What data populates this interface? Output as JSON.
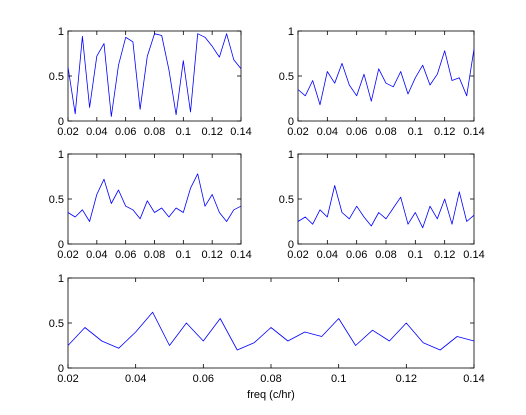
{
  "chart_data": [
    {
      "type": "line",
      "panel": "top-left",
      "xlim": [
        0.02,
        0.14
      ],
      "ylim": [
        0,
        1
      ],
      "xticks": [
        "0.02",
        "0.04",
        "0.06",
        "0.08",
        "0.1",
        "0.12",
        "0.14"
      ],
      "yticks": [
        "0",
        "0.5",
        "1"
      ],
      "xlabel": "",
      "x": [
        0.02,
        0.025,
        0.03,
        0.035,
        0.04,
        0.045,
        0.05,
        0.055,
        0.06,
        0.065,
        0.07,
        0.075,
        0.08,
        0.085,
        0.09,
        0.095,
        0.1,
        0.105,
        0.11,
        0.115,
        0.12,
        0.125,
        0.13,
        0.135,
        0.14
      ],
      "series": [
        {
          "values": [
            0.6,
            0.08,
            0.94,
            0.15,
            0.72,
            0.86,
            0.05,
            0.62,
            0.93,
            0.88,
            0.13,
            0.72,
            0.97,
            0.95,
            0.57,
            0.07,
            0.67,
            0.1,
            0.97,
            0.93,
            0.83,
            0.71,
            0.97,
            0.68,
            0.58
          ]
        }
      ]
    },
    {
      "type": "line",
      "panel": "top-right",
      "xlim": [
        0.02,
        0.14
      ],
      "ylim": [
        0,
        1
      ],
      "xticks": [
        "0.02",
        "0.04",
        "0.06",
        "0.08",
        "0.1",
        "0.12",
        "0.14"
      ],
      "yticks": [
        "0",
        "0.5",
        "1"
      ],
      "xlabel": "",
      "x": [
        0.02,
        0.025,
        0.03,
        0.035,
        0.04,
        0.045,
        0.05,
        0.055,
        0.06,
        0.065,
        0.07,
        0.075,
        0.08,
        0.085,
        0.09,
        0.095,
        0.1,
        0.105,
        0.11,
        0.115,
        0.12,
        0.125,
        0.13,
        0.135,
        0.14
      ],
      "series": [
        {
          "values": [
            0.35,
            0.28,
            0.45,
            0.18,
            0.55,
            0.42,
            0.64,
            0.4,
            0.28,
            0.52,
            0.22,
            0.58,
            0.42,
            0.38,
            0.55,
            0.3,
            0.48,
            0.62,
            0.4,
            0.52,
            0.78,
            0.45,
            0.48,
            0.28,
            0.8
          ]
        }
      ]
    },
    {
      "type": "line",
      "panel": "middle-left",
      "xlim": [
        0.02,
        0.14
      ],
      "ylim": [
        0,
        1
      ],
      "xticks": [
        "0.02",
        "0.04",
        "0.06",
        "0.08",
        "0.1",
        "0.12",
        "0.14"
      ],
      "yticks": [
        "0",
        "0.5",
        "1"
      ],
      "xlabel": "",
      "x": [
        0.02,
        0.025,
        0.03,
        0.035,
        0.04,
        0.045,
        0.05,
        0.055,
        0.06,
        0.065,
        0.07,
        0.075,
        0.08,
        0.085,
        0.09,
        0.095,
        0.1,
        0.105,
        0.11,
        0.115,
        0.12,
        0.125,
        0.13,
        0.135,
        0.14
      ],
      "series": [
        {
          "values": [
            0.35,
            0.3,
            0.38,
            0.25,
            0.55,
            0.72,
            0.45,
            0.6,
            0.42,
            0.38,
            0.28,
            0.48,
            0.35,
            0.4,
            0.3,
            0.4,
            0.35,
            0.62,
            0.78,
            0.42,
            0.55,
            0.35,
            0.25,
            0.38,
            0.42
          ]
        }
      ]
    },
    {
      "type": "line",
      "panel": "middle-right",
      "xlim": [
        0.02,
        0.14
      ],
      "ylim": [
        0,
        1
      ],
      "xticks": [
        "0.02",
        "0.04",
        "0.06",
        "0.08",
        "0.1",
        "0.12",
        "0.14"
      ],
      "yticks": [
        "0",
        "0.5",
        "1"
      ],
      "xlabel": "",
      "x": [
        0.02,
        0.025,
        0.03,
        0.035,
        0.04,
        0.045,
        0.05,
        0.055,
        0.06,
        0.065,
        0.07,
        0.075,
        0.08,
        0.085,
        0.09,
        0.095,
        0.1,
        0.105,
        0.11,
        0.115,
        0.12,
        0.125,
        0.13,
        0.135,
        0.14
      ],
      "series": [
        {
          "values": [
            0.25,
            0.3,
            0.22,
            0.38,
            0.3,
            0.65,
            0.35,
            0.28,
            0.42,
            0.3,
            0.2,
            0.35,
            0.28,
            0.4,
            0.52,
            0.22,
            0.35,
            0.18,
            0.42,
            0.28,
            0.5,
            0.22,
            0.58,
            0.25,
            0.32
          ]
        }
      ]
    },
    {
      "type": "line",
      "panel": "bottom",
      "xlim": [
        0.02,
        0.14
      ],
      "ylim": [
        0,
        1
      ],
      "xticks": [
        "0.02",
        "0.04",
        "0.06",
        "0.08",
        "0.1",
        "0.12",
        "0.14"
      ],
      "yticks": [
        "0",
        "0.5",
        "1"
      ],
      "xlabel": "freq (c/hr)",
      "x": [
        0.02,
        0.025,
        0.03,
        0.035,
        0.04,
        0.045,
        0.05,
        0.055,
        0.06,
        0.065,
        0.07,
        0.075,
        0.08,
        0.085,
        0.09,
        0.095,
        0.1,
        0.105,
        0.11,
        0.115,
        0.12,
        0.125,
        0.13,
        0.135,
        0.14
      ],
      "series": [
        {
          "values": [
            0.25,
            0.45,
            0.3,
            0.22,
            0.4,
            0.62,
            0.25,
            0.5,
            0.3,
            0.55,
            0.2,
            0.28,
            0.45,
            0.3,
            0.4,
            0.35,
            0.55,
            0.25,
            0.42,
            0.3,
            0.5,
            0.28,
            0.2,
            0.35,
            0.3
          ]
        }
      ]
    }
  ]
}
